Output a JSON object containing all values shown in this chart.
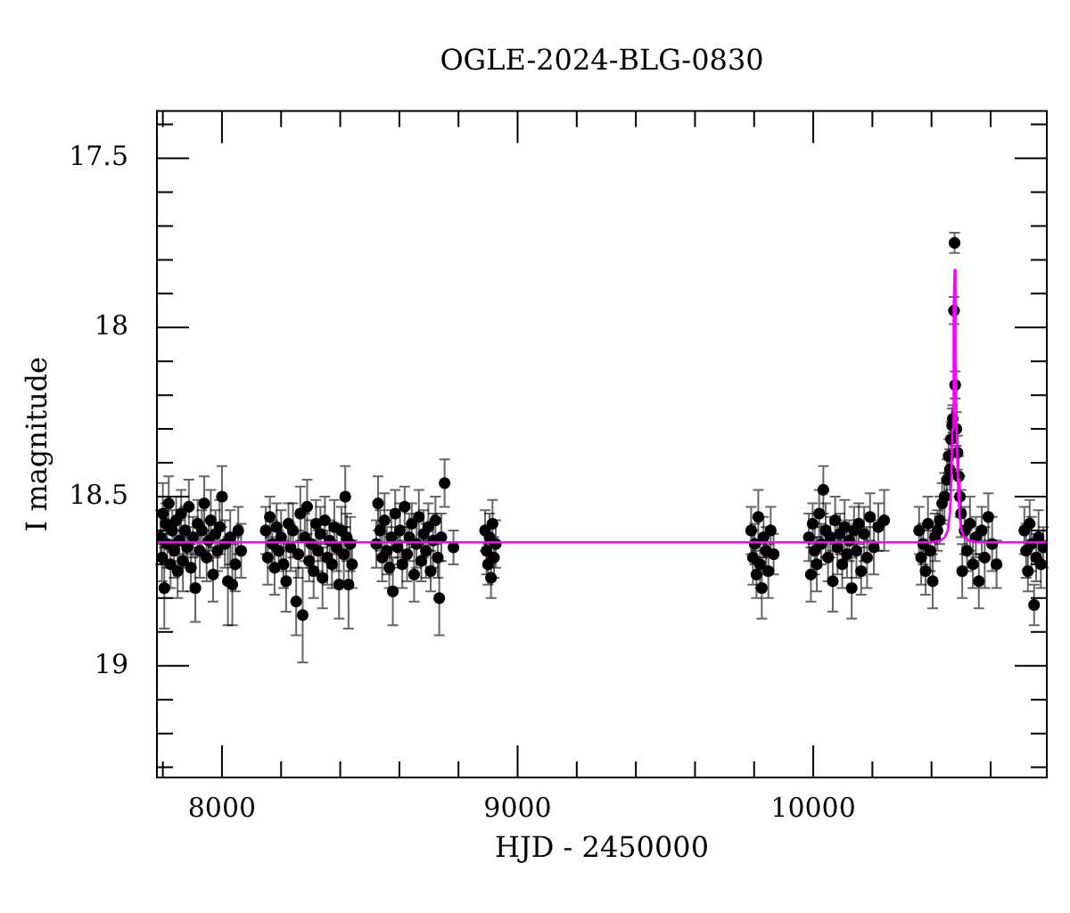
{
  "chart_data": {
    "type": "scatter",
    "title": "OGLE-2024-BLG-0830",
    "xlabel": "HJD - 2450000",
    "ylabel": "I magnitude",
    "xlim": [
      7780,
      10790
    ],
    "ylim": [
      19.33,
      17.36
    ],
    "xticks": [
      {
        "value": 7800,
        "label": null
      },
      8000,
      {
        "value": 8200,
        "label": null
      },
      {
        "value": 8400,
        "label": null
      },
      {
        "value": 8600,
        "label": null
      },
      {
        "value": 8800,
        "label": null
      },
      9000,
      {
        "value": 9200,
        "label": null
      },
      {
        "value": 9400,
        "label": null
      },
      {
        "value": 9600,
        "label": null
      },
      {
        "value": 9800,
        "label": null
      },
      10000,
      {
        "value": 10200,
        "label": null
      },
      {
        "value": 10400,
        "label": null
      },
      {
        "value": 10600,
        "label": null
      }
    ],
    "yticks": [
      {
        "value": 17.4,
        "label": null
      },
      17.5,
      {
        "value": 17.6,
        "label": null
      },
      {
        "value": 17.7,
        "label": null
      },
      {
        "value": 17.8,
        "label": null
      },
      {
        "value": 17.9,
        "label": null
      },
      18,
      {
        "value": 18.1,
        "label": null
      },
      {
        "value": 18.2,
        "label": null
      },
      {
        "value": 18.3,
        "label": null
      },
      {
        "value": 18.4,
        "label": null
      },
      18.5,
      {
        "value": 18.6,
        "label": null
      },
      {
        "value": 18.7,
        "label": null
      },
      {
        "value": 18.8,
        "label": null
      },
      {
        "value": 18.9,
        "label": null
      },
      19,
      {
        "value": 19.1,
        "label": null
      },
      {
        "value": 19.2,
        "label": null
      },
      {
        "value": 19.3,
        "label": null
      }
    ],
    "legend": false,
    "marker": "circle",
    "series": [
      {
        "color": "#000000",
        "x": [
          7792,
          7797,
          7800,
          7805,
          7810,
          7815,
          7820,
          7826,
          7832,
          7838,
          7845,
          7850,
          7856,
          7862,
          7868,
          7875,
          7882,
          7888,
          7895,
          7902,
          7910,
          7918,
          7925,
          7932,
          7940,
          7948,
          7955,
          7962,
          7970,
          7978,
          7985,
          7992,
          8000,
          8010,
          8020,
          8028,
          8035,
          8045,
          8055,
          8065,
          8148,
          8155,
          8162,
          8170,
          8178,
          8185,
          8192,
          8200,
          8208,
          8217,
          8225,
          8232,
          8240,
          8251,
          8258,
          8265,
          8273,
          8280,
          8288,
          8295,
          8302,
          8310,
          8318,
          8325,
          8333,
          8340,
          8348,
          8356,
          8364,
          8372,
          8380,
          8388,
          8396,
          8404,
          8412,
          8417,
          8422,
          8428,
          8434,
          8440,
          8522,
          8528,
          8535,
          8542,
          8550,
          8558,
          8566,
          8573,
          8578,
          8586,
          8594,
          8602,
          8610,
          8618,
          8626,
          8634,
          8642,
          8650,
          8658,
          8666,
          8674,
          8682,
          8690,
          8698,
          8706,
          8714,
          8722,
          8730,
          8735,
          8742,
          8753,
          8783,
          8890,
          8895,
          8900,
          8905,
          8910,
          8915,
          8920,
          8926,
          9790,
          9796,
          9802,
          9808,
          9814,
          9820,
          9826,
          9832,
          9840,
          9848,
          9856,
          9866,
          9985,
          9992,
          9998,
          10005,
          10012,
          10020,
          10027,
          10034,
          10042,
          10050,
          10058,
          10066,
          10074,
          10082,
          10090,
          10098,
          10106,
          10114,
          10122,
          10130,
          10138,
          10146,
          10154,
          10162,
          10172,
          10182,
          10192,
          10205,
          10220,
          10240,
          10358,
          10365,
          10372,
          10380,
          10388,
          10396,
          10404,
          10412,
          10420,
          10428,
          10436,
          10444,
          10452,
          10458,
          10462,
          10466,
          10470,
          10472,
          10476,
          10478,
          10480,
          10484,
          10488,
          10492,
          10496,
          10500,
          10504,
          10512,
          10520,
          10530,
          10540,
          10550,
          10560,
          10570,
          10580,
          10592,
          10605,
          10620,
          10714,
          10720,
          10726,
          10732,
          10738,
          10747,
          10754,
          10762,
          10770,
          10778
        ],
        "values": [
          18.62,
          18.68,
          18.55,
          18.77,
          18.58,
          18.64,
          18.52,
          18.7,
          18.6,
          18.66,
          18.57,
          18.72,
          18.63,
          18.55,
          18.69,
          18.6,
          18.65,
          18.53,
          18.71,
          18.62,
          18.77,
          18.58,
          18.66,
          18.6,
          18.52,
          18.68,
          18.63,
          18.57,
          18.73,
          18.61,
          18.66,
          18.59,
          18.5,
          18.64,
          18.75,
          18.62,
          18.76,
          18.7,
          18.6,
          18.66,
          18.6,
          18.68,
          18.56,
          18.64,
          18.71,
          18.59,
          18.66,
          18.62,
          18.7,
          18.75,
          18.58,
          18.65,
          18.6,
          18.81,
          18.67,
          18.55,
          18.85,
          18.62,
          18.53,
          18.69,
          18.64,
          18.72,
          18.58,
          18.66,
          18.61,
          18.74,
          18.57,
          18.68,
          18.63,
          18.7,
          18.59,
          18.65,
          18.76,
          18.6,
          18.67,
          18.5,
          18.62,
          18.76,
          18.64,
          18.7,
          18.64,
          18.52,
          18.6,
          18.68,
          18.57,
          18.66,
          18.71,
          18.62,
          18.78,
          18.55,
          18.65,
          18.6,
          18.7,
          18.53,
          18.67,
          18.62,
          18.58,
          18.73,
          18.64,
          18.56,
          18.69,
          18.61,
          18.66,
          18.59,
          18.72,
          18.63,
          18.57,
          18.68,
          18.8,
          18.62,
          18.46,
          18.65,
          18.6,
          18.66,
          18.7,
          18.62,
          18.74,
          18.58,
          18.68,
          18.64,
          18.6,
          18.68,
          18.64,
          18.73,
          18.56,
          18.7,
          18.77,
          18.62,
          18.66,
          18.72,
          18.6,
          18.67,
          18.62,
          18.73,
          18.58,
          18.66,
          18.7,
          18.55,
          18.64,
          18.48,
          18.6,
          18.68,
          18.62,
          18.75,
          18.57,
          18.65,
          18.61,
          18.7,
          18.59,
          18.67,
          18.63,
          18.77,
          18.6,
          18.66,
          18.58,
          18.72,
          18.61,
          18.68,
          18.56,
          18.65,
          18.59,
          18.57,
          18.6,
          18.68,
          18.64,
          18.72,
          18.58,
          18.66,
          18.75,
          18.62,
          18.6,
          18.57,
          18.52,
          18.5,
          18.45,
          18.38,
          18.42,
          18.33,
          18.29,
          18.27,
          17.95,
          17.75,
          18.17,
          18.3,
          18.37,
          18.44,
          18.5,
          18.55,
          18.72,
          18.6,
          18.66,
          18.58,
          18.7,
          18.62,
          18.75,
          18.6,
          18.68,
          18.56,
          18.64,
          18.7,
          18.6,
          18.66,
          18.72,
          18.58,
          18.64,
          18.82,
          18.68,
          18.62,
          18.7,
          18.65
        ],
        "errors": [
          0.08,
          0.07,
          0.09,
          0.12,
          0.06,
          0.07,
          0.08,
          0.07,
          0.06,
          0.08,
          0.07,
          0.08,
          0.06,
          0.07,
          0.09,
          0.07,
          0.06,
          0.08,
          0.07,
          0.06,
          0.1,
          0.07,
          0.08,
          0.06,
          0.08,
          0.07,
          0.06,
          0.09,
          0.08,
          0.07,
          0.06,
          0.08,
          0.09,
          0.07,
          0.13,
          0.08,
          0.12,
          0.08,
          0.07,
          0.08,
          0.07,
          0.08,
          0.06,
          0.07,
          0.08,
          0.07,
          0.06,
          0.08,
          0.07,
          0.09,
          0.06,
          0.07,
          0.08,
          0.1,
          0.07,
          0.08,
          0.14,
          0.07,
          0.08,
          0.06,
          0.07,
          0.08,
          0.07,
          0.06,
          0.08,
          0.09,
          0.07,
          0.08,
          0.06,
          0.07,
          0.08,
          0.07,
          0.1,
          0.07,
          0.08,
          0.09,
          0.07,
          0.13,
          0.08,
          0.07,
          0.07,
          0.08,
          0.06,
          0.07,
          0.08,
          0.07,
          0.06,
          0.08,
          0.1,
          0.07,
          0.06,
          0.08,
          0.07,
          0.06,
          0.08,
          0.07,
          0.06,
          0.08,
          0.07,
          0.08,
          0.06,
          0.07,
          0.08,
          0.07,
          0.06,
          0.08,
          0.07,
          0.06,
          0.11,
          0.07,
          0.07,
          0.05,
          0.06,
          0.07,
          0.06,
          0.07,
          0.06,
          0.07,
          0.06,
          0.07,
          0.07,
          0.08,
          0.06,
          0.07,
          0.08,
          0.07,
          0.09,
          0.06,
          0.07,
          0.08,
          0.07,
          0.06,
          0.07,
          0.08,
          0.06,
          0.07,
          0.08,
          0.07,
          0.06,
          0.07,
          0.08,
          0.07,
          0.06,
          0.09,
          0.07,
          0.08,
          0.06,
          0.07,
          0.08,
          0.07,
          0.06,
          0.09,
          0.07,
          0.08,
          0.06,
          0.07,
          0.08,
          0.09,
          0.07,
          0.08,
          0.07,
          0.09,
          0.07,
          0.08,
          0.06,
          0.07,
          0.08,
          0.06,
          0.08,
          0.07,
          0.06,
          0.07,
          0.06,
          0.07,
          0.06,
          0.05,
          0.06,
          0.05,
          0.05,
          0.04,
          0.04,
          0.03,
          0.04,
          0.05,
          0.05,
          0.06,
          0.06,
          0.07,
          0.08,
          0.07,
          0.06,
          0.08,
          0.07,
          0.06,
          0.08,
          0.07,
          0.09,
          0.07,
          0.08,
          0.07,
          0.07,
          0.08,
          0.06,
          0.07,
          0.08,
          0.06,
          0.07,
          0.08,
          0.07,
          0.06
        ]
      },
      {
        "type": "line",
        "color": "#ff00ff",
        "marker": "none",
        "x": [
          7780,
          10400,
          10430,
          10445,
          10455,
          10462,
          10467,
          10471,
          10474,
          10476,
          10478,
          10480,
          10482,
          10485,
          10489,
          10494,
          10501,
          10511,
          10526,
          10560,
          10790
        ],
        "values": [
          18.635,
          18.635,
          18.63,
          18.62,
          18.6,
          18.55,
          18.45,
          18.3,
          18.1,
          17.95,
          17.83,
          17.95,
          18.1,
          18.3,
          18.45,
          18.55,
          18.6,
          18.62,
          18.63,
          18.635,
          18.635
        ]
      }
    ]
  }
}
